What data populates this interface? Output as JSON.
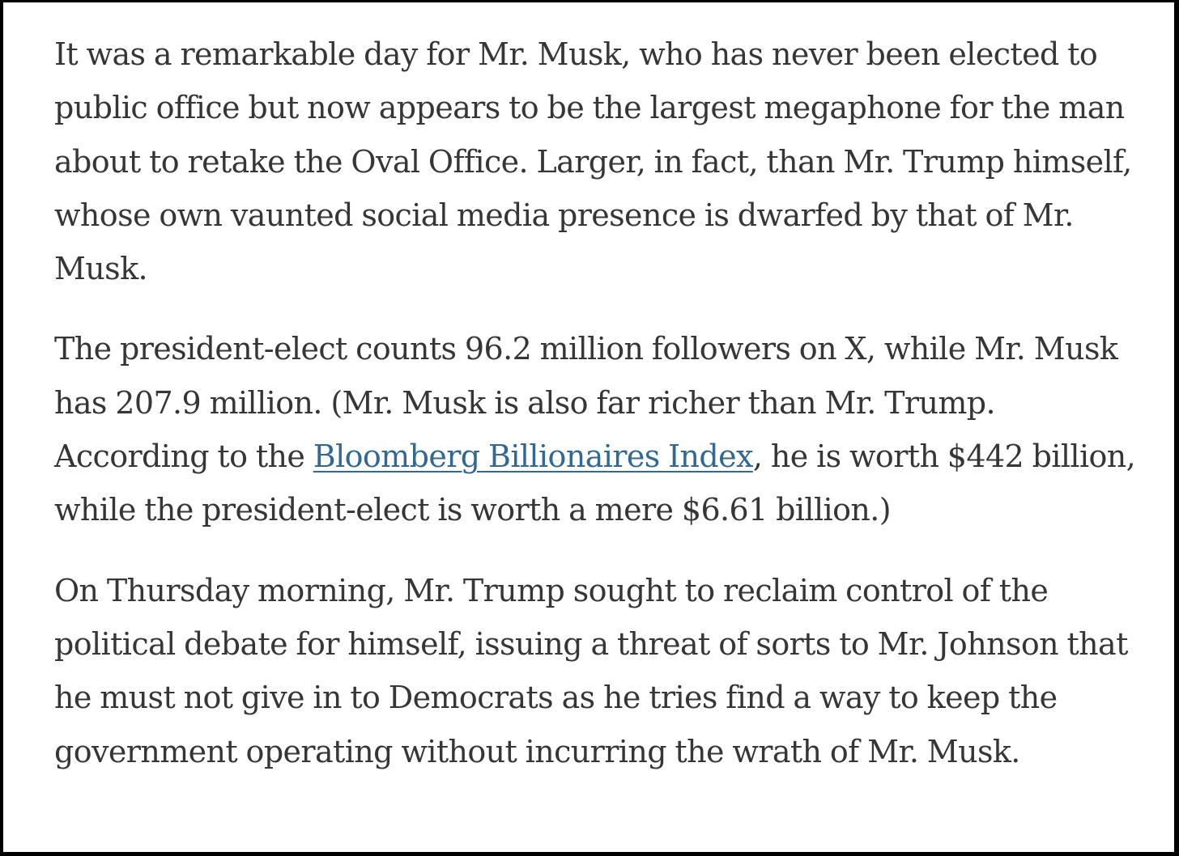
{
  "article": {
    "paragraphs": [
      {
        "text": "It was a remarkable day for Mr. Musk, who has never been elected to public office but now appears to be the largest megaphone for the man about to retake the Oval Office. Larger, in fact, than Mr. Trump himself, whose own vaunted social media presence is dwarfed by that of Mr. Musk."
      },
      {
        "text_before_link": "The president-elect counts 96.2 million followers on X, while Mr. Musk has 207.9 million. (Mr. Musk is also far richer than Mr. Trump. According to the ",
        "link_text": "Bloomberg Billionaires Index",
        "text_after_link": ", he is worth $442 billion, while the president-elect is worth a mere $6.61 billion.)"
      },
      {
        "text": "On Thursday morning, Mr. Trump sought to reclaim control of the political debate for himself, issuing a threat of sorts to Mr. Johnson that he must not give in to Democrats as he tries find a way to keep the government operating without incurring the wrath of Mr. Musk."
      }
    ],
    "link_color": "#326891",
    "text_color": "#363636"
  }
}
